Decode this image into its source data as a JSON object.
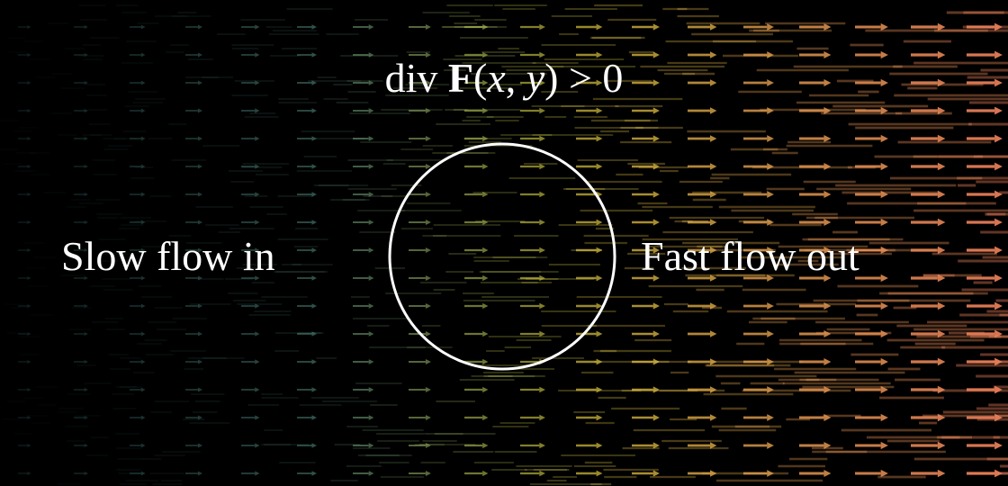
{
  "formula": {
    "prefix": "div",
    "field": "F",
    "open_paren": "(",
    "var_x": "x",
    "comma": ", ",
    "var_y": "y",
    "close_paren": ")",
    "relation": " > 0"
  },
  "left_label": "Slow flow in",
  "right_label": "Fast flow out",
  "colors": {
    "background": "#000000",
    "circle": "#ffffff",
    "gradient_stops": [
      "#4a8a8a",
      "#6fa08a",
      "#c8c84a",
      "#e0c840",
      "#e8a050",
      "#e87a5a"
    ]
  },
  "vector_field": {
    "direction": "right",
    "speed_trend": "increasing left to right"
  }
}
